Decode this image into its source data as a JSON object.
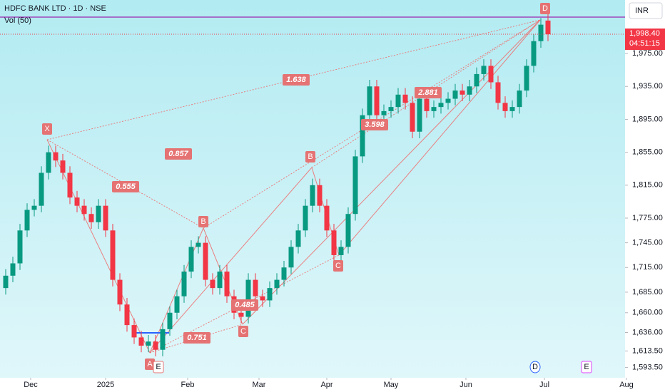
{
  "chart_data": {
    "type": "candlestick",
    "title": "HDFC BANK LTD · 1D · NSE",
    "indicator": "Vol (50)",
    "currency": "INR",
    "x": [
      0,
      2,
      4,
      6,
      8,
      10,
      12,
      14,
      16,
      18,
      20,
      22,
      24,
      26,
      28,
      30,
      32,
      34,
      36,
      38,
      40,
      42,
      44,
      46,
      48,
      50,
      52,
      54,
      56,
      58,
      60,
      62,
      64,
      66,
      68,
      70,
      72,
      74,
      76,
      78,
      80,
      82,
      84,
      86,
      88,
      90,
      92,
      94,
      96,
      98,
      100,
      102,
      104,
      106,
      108,
      110,
      112,
      114,
      116,
      118,
      120,
      122,
      124,
      126,
      128,
      130,
      132,
      134,
      136,
      138,
      140,
      142,
      144,
      146,
      148,
      150,
      152
    ],
    "open": [
      1690,
      1705,
      1720,
      1760,
      1785,
      1790,
      1830,
      1855,
      1845,
      1830,
      1800,
      1790,
      1780,
      1770,
      1790,
      1760,
      1700,
      1670,
      1645,
      1630,
      1620,
      1625,
      1615,
      1640,
      1660,
      1680,
      1710,
      1740,
      1745,
      1700,
      1690,
      1710,
      1680,
      1660,
      1655,
      1700,
      1680,
      1675,
      1690,
      1700,
      1715,
      1740,
      1760,
      1790,
      1815,
      1790,
      1760,
      1730,
      1740,
      1780,
      1850,
      1900,
      1935,
      1900,
      1905,
      1910,
      1925,
      1915,
      1880,
      1920,
      1905,
      1910,
      1915,
      1920,
      1930,
      1925,
      1935,
      1950,
      1960,
      1940,
      1915,
      1905,
      1910,
      1930,
      1960,
      1990,
      2015
    ],
    "high": [
      1713,
      1728,
      1768,
      1793,
      1798,
      1838,
      1863,
      1863,
      1853,
      1838,
      1808,
      1798,
      1788,
      1798,
      1798,
      1768,
      1708,
      1678,
      1653,
      1638,
      1633,
      1633,
      1648,
      1668,
      1688,
      1718,
      1748,
      1753,
      1753,
      1708,
      1718,
      1718,
      1688,
      1668,
      1708,
      1708,
      1688,
      1698,
      1708,
      1723,
      1748,
      1768,
      1798,
      1823,
      1823,
      1798,
      1768,
      1748,
      1788,
      1858,
      1908,
      1943,
      1943,
      1913,
      1918,
      1933,
      1933,
      1923,
      1928,
      1928,
      1918,
      1923,
      1928,
      1938,
      1938,
      1943,
      1958,
      1968,
      1968,
      1948,
      1923,
      1918,
      1938,
      1968,
      1998,
      2018,
      2023
    ],
    "low": [
      1682,
      1697,
      1712,
      1752,
      1777,
      1782,
      1822,
      1837,
      1822,
      1792,
      1782,
      1772,
      1762,
      1762,
      1752,
      1692,
      1662,
      1637,
      1622,
      1612,
      1612,
      1607,
      1607,
      1632,
      1652,
      1672,
      1702,
      1732,
      1692,
      1682,
      1682,
      1672,
      1652,
      1647,
      1647,
      1672,
      1667,
      1667,
      1682,
      1692,
      1707,
      1732,
      1752,
      1782,
      1782,
      1752,
      1722,
      1722,
      1732,
      1772,
      1842,
      1892,
      1892,
      1892,
      1897,
      1902,
      1907,
      1872,
      1872,
      1897,
      1897,
      1902,
      1907,
      1912,
      1917,
      1917,
      1927,
      1942,
      1932,
      1907,
      1897,
      1897,
      1902,
      1922,
      1952,
      1982,
      1990
    ],
    "close": [
      1705,
      1720,
      1760,
      1785,
      1790,
      1830,
      1855,
      1845,
      1830,
      1800,
      1790,
      1780,
      1770,
      1790,
      1760,
      1700,
      1670,
      1645,
      1630,
      1620,
      1625,
      1615,
      1640,
      1660,
      1680,
      1710,
      1740,
      1745,
      1700,
      1690,
      1710,
      1680,
      1660,
      1655,
      1700,
      1680,
      1675,
      1690,
      1700,
      1715,
      1740,
      1760,
      1790,
      1815,
      1790,
      1760,
      1730,
      1740,
      1780,
      1850,
      1900,
      1935,
      1900,
      1905,
      1910,
      1925,
      1915,
      1880,
      1920,
      1905,
      1910,
      1915,
      1920,
      1930,
      1925,
      1935,
      1950,
      1960,
      1940,
      1915,
      1905,
      1910,
      1930,
      1960,
      1990,
      2010,
      1998.4
    ],
    "up_color": "#089981",
    "down_color": "#f23645",
    "xlim": [
      -1.6,
      173.4
    ],
    "xticks": [
      {
        "value": 7,
        "label": "Dec"
      },
      {
        "value": 28,
        "label": "2025"
      },
      {
        "value": 51,
        "label": "Feb"
      },
      {
        "value": 71,
        "label": "Mar"
      },
      {
        "value": 90,
        "label": "Apr"
      },
      {
        "value": 108,
        "label": "May"
      },
      {
        "value": 129,
        "label": "Jun"
      },
      {
        "value": 151,
        "label": "Jul"
      },
      {
        "value": 174,
        "label": "Aug"
      }
    ],
    "ylim": [
      1581,
      2040
    ],
    "yticks": [
      {
        "value": 1593.5,
        "label": "1,593.50"
      },
      {
        "value": 1613.5,
        "label": "1,613.50"
      },
      {
        "value": 1636,
        "label": "1,636.00"
      },
      {
        "value": 1660,
        "label": "1,660.00"
      },
      {
        "value": 1685,
        "label": "1,685.00"
      },
      {
        "value": 1715,
        "label": "1,715.00"
      },
      {
        "value": 1745,
        "label": "1,745.00"
      },
      {
        "value": 1775,
        "label": "1,775.00"
      },
      {
        "value": 1815,
        "label": "1,815.00"
      },
      {
        "value": 1855,
        "label": "1,855.00"
      },
      {
        "value": 1895,
        "label": "1,895.00"
      },
      {
        "value": 1935,
        "label": "1,935.00"
      },
      {
        "value": 1975,
        "label": "1,975.00"
      }
    ],
    "current_price": {
      "value": 1998.4,
      "label": "1,998.40"
    },
    "countdown": "04:51:15",
    "pattern_points": [
      "X",
      "A",
      "B",
      "C",
      "D",
      "B",
      "C"
    ],
    "ratios": [
      1.638,
      0.857,
      0.555,
      0.751,
      0.485,
      3.598,
      2.881
    ],
    "event_markers": [
      "E",
      "D",
      "E"
    ]
  }
}
